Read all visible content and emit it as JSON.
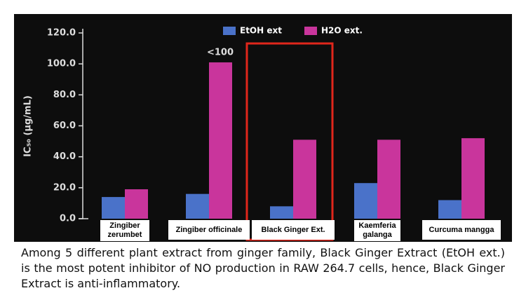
{
  "chart_data": {
    "type": "bar",
    "y_label": "IC₅₀ (µg/mL)",
    "categories": [
      "Zingiber zerumbet",
      "Zingiber officinale",
      "Black Ginger Ext.",
      "Kaemferia galanga",
      "Curcuma mangga"
    ],
    "series": [
      {
        "name": "EtOH ext",
        "color": "#4a72c9",
        "values": [
          14,
          16,
          8,
          23,
          12
        ]
      },
      {
        "name": "H2O ext.",
        "color": "#c9359c",
        "values": [
          19,
          101,
          51,
          51,
          52
        ]
      }
    ],
    "annotation": "<100",
    "ylim": [
      0,
      120
    ],
    "yticks": [
      {
        "value": 0,
        "label": "0.0"
      },
      {
        "value": 20,
        "label": "20.0"
      },
      {
        "value": 40,
        "label": "40.0"
      },
      {
        "value": 60,
        "label": "60.0"
      },
      {
        "value": 80,
        "label": "80.0"
      },
      {
        "value": 100,
        "label": "100.0"
      },
      {
        "value": 120,
        "label": "120.0"
      }
    ]
  },
  "caption": "Among 5 different plant extract from ginger family,  Black Ginger Extract (EtOH ext.) is the most potent inhibitor of NO production in RAW 264.7 cells, hence, Black Ginger Extract is anti-inflammatory."
}
